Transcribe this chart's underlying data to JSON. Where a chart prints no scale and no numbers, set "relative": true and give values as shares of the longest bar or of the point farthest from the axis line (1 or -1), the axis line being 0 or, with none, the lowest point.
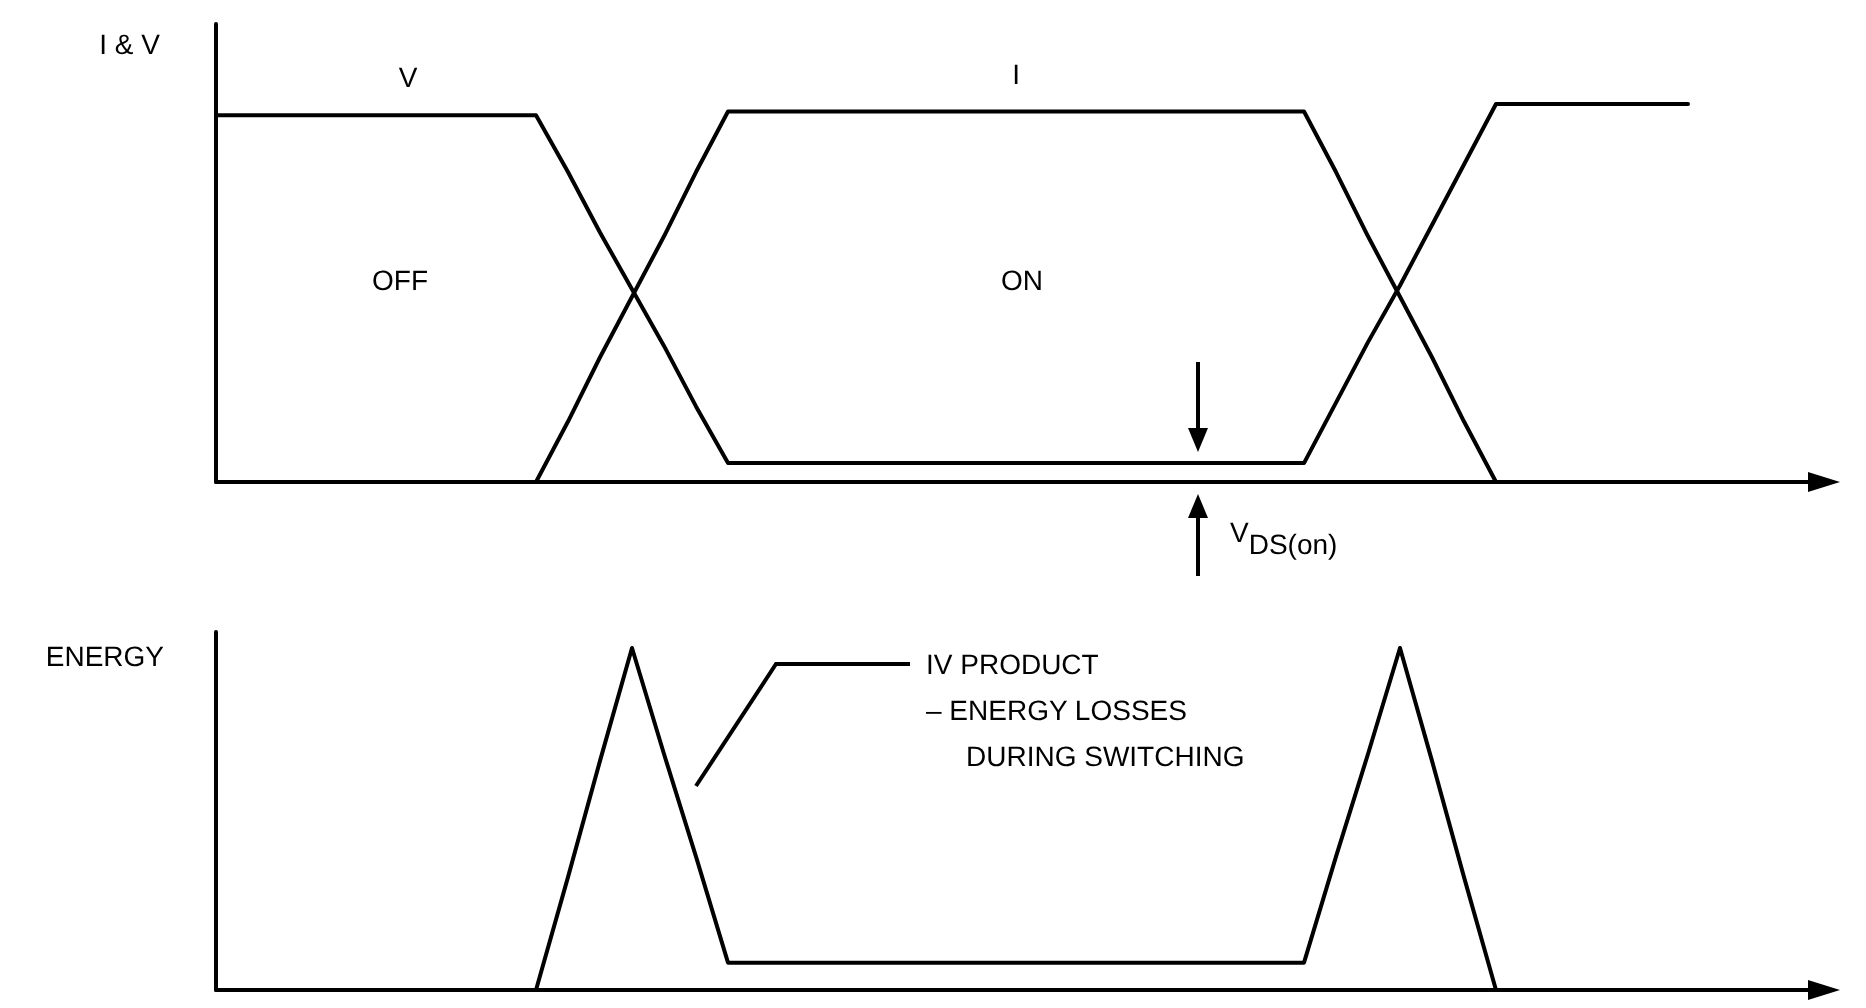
{
  "chart_data": [
    {
      "type": "line",
      "ylabel": "I & V",
      "relative": true,
      "marker": "none",
      "line_style": "solid",
      "categories": [
        null,
        null,
        null,
        null,
        null,
        null,
        null,
        null,
        null,
        null,
        null,
        null,
        null,
        null,
        null,
        null,
        null,
        null,
        null,
        null,
        null,
        null,
        null,
        null,
        null,
        null,
        null,
        null,
        null,
        null,
        null,
        null,
        null,
        null,
        null,
        null,
        null,
        null,
        null,
        null,
        null,
        null,
        null,
        null,
        null,
        null,
        null,
        null,
        null,
        null,
        null
      ],
      "series": [
        {
          "name": "V",
          "color": "#000000",
          "values": [
            0.97,
            0.97,
            0.97,
            0.97,
            0.97,
            0.97,
            0.97,
            0.97,
            0.97,
            0.97,
            0.97,
            0.82,
            0.66,
            0.51,
            0.36,
            0.2,
            0.05,
            0.05,
            0.05,
            0.05,
            0.05,
            0.05,
            0.05,
            0.05,
            0.05,
            0.05,
            0.05,
            0.05,
            0.05,
            0.05,
            0.05,
            0.05,
            0.05,
            0.05,
            0.05,
            0.21,
            0.37,
            0.52,
            0.68,
            0.84,
            1,
            1,
            1,
            1,
            1,
            1,
            1,
            null,
            null,
            null,
            null
          ]
        },
        {
          "name": "I",
          "color": "#000000",
          "values": [
            null,
            null,
            null,
            null,
            null,
            null,
            null,
            null,
            null,
            null,
            0,
            0.16,
            0.33,
            0.49,
            0.65,
            0.82,
            0.98,
            0.98,
            0.98,
            0.98,
            0.98,
            0.98,
            0.98,
            0.98,
            0.98,
            0.98,
            0.98,
            0.98,
            0.98,
            0.98,
            0.98,
            0.98,
            0.98,
            0.98,
            0.98,
            0.82,
            0.65,
            0.49,
            0.33,
            0.16,
            0,
            null,
            null,
            null,
            null,
            null,
            null,
            null,
            null,
            null,
            null
          ]
        }
      ],
      "annotations": [
        "OFF",
        "ON",
        "V$_{DS(on)}$"
      ]
    },
    {
      "type": "line",
      "ylabel": "ENERGY",
      "relative": true,
      "marker": "none",
      "line_style": "solid",
      "categories": [
        null,
        null,
        null,
        null,
        null,
        null,
        null,
        null,
        null,
        null,
        null,
        null,
        null,
        null,
        null,
        null,
        null,
        null,
        null,
        null,
        null,
        null,
        null,
        null,
        null,
        null,
        null,
        null,
        null,
        null,
        null,
        null,
        null,
        null,
        null,
        null,
        null,
        null,
        null,
        null,
        null,
        null,
        null,
        null,
        null,
        null,
        null,
        null,
        null,
        null,
        null
      ],
      "series": [
        {
          "color": "#000000",
          "values": [
            null,
            null,
            null,
            null,
            null,
            null,
            null,
            null,
            null,
            null,
            0,
            0.33,
            0.67,
            1,
            0.69,
            0.39,
            0.08,
            0.08,
            0.08,
            0.08,
            0.08,
            0.08,
            0.08,
            0.08,
            0.08,
            0.08,
            0.08,
            0.08,
            0.08,
            0.08,
            0.08,
            0.08,
            0.08,
            0.08,
            0.08,
            0.39,
            0.69,
            1,
            0.67,
            0.33,
            0,
            null,
            null,
            null,
            null,
            null,
            null,
            null,
            null,
            null,
            null
          ]
        }
      ],
      "annotations": [
        "IV PRODUCT\n– ENERGY LOSSES\nDURING SWITCHING"
      ]
    }
  ]
}
